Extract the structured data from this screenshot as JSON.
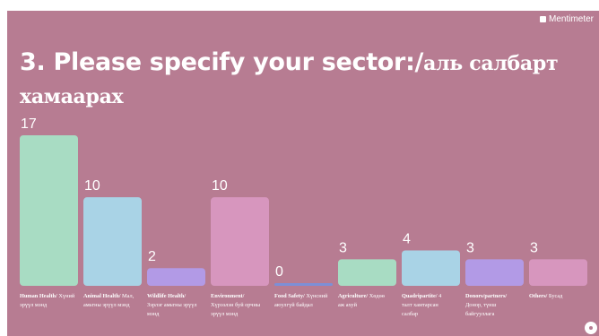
{
  "brand": {
    "name": "Mentimeter",
    "icon": "mentimeter-logo-icon"
  },
  "slide": {
    "background": "#b77c92"
  },
  "title": {
    "part1": "3. Please specify your sector:/",
    "part2": "аль салбарт хамаарах"
  },
  "chart_data": {
    "type": "bar",
    "categories": [
      {
        "label_bold": "Human Health/",
        "label_rest": "Хүний эрүүл мэнд"
      },
      {
        "label_bold": "Animal Health/",
        "label_rest": "Мал, амьтны эрүүл мэнд"
      },
      {
        "label_bold": "Wildlife Health/",
        "label_rest": "Зэрлэг амьтны эрүүл мэнд"
      },
      {
        "label_bold": "Environment/",
        "label_rest": "Хүрээлэн буй орчны эрүүл мэнд"
      },
      {
        "label_bold": "Food Safety/",
        "label_rest": "Хүнсний аюулгүй байдал"
      },
      {
        "label_bold": "Agriculture/",
        "label_rest": "Хөдөө аж ахуй"
      },
      {
        "label_bold": "Quadripartite/",
        "label_rest": "4 талт хамтарсан салбар"
      },
      {
        "label_bold": "Donors/partners/",
        "label_rest": "Донор, түнш байгууллага"
      },
      {
        "label_bold": "Others/",
        "label_rest": "Бусад"
      }
    ],
    "values": [
      17,
      10,
      2,
      10,
      0,
      3,
      4,
      3,
      3
    ],
    "colors": [
      "#a8dcc3",
      "#a9d3e6",
      "#b29ae6",
      "#d796be",
      "#7d8fd6",
      "#a8dcc3",
      "#a9d3e6",
      "#b29ae6",
      "#d796be"
    ],
    "ylim": [
      0,
      17
    ]
  }
}
